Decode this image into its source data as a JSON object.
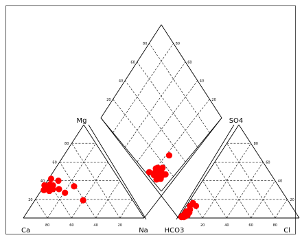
{
  "chart_data": {
    "type": "scatter",
    "subtype": "piper-diagram",
    "grid": true,
    "ticks": [
      "20",
      "40",
      "60",
      "80"
    ],
    "colors": {
      "point": "#ff0000",
      "line": "#000000",
      "frame": "#555555"
    },
    "labels": {
      "ca": "Ca",
      "mg": "Mg",
      "na": "Na",
      "hco3": "HCO3",
      "so4": "SO4",
      "cl": "Cl"
    },
    "cation_triangle": {
      "axes": [
        "Ca",
        "Mg",
        "Na"
      ],
      "points": [
        {
          "ca": 56,
          "mg": 42
        },
        {
          "ca": 66,
          "mg": 32
        },
        {
          "ca": 68,
          "mg": 30
        },
        {
          "ca": 62,
          "mg": 34
        },
        {
          "ca": 60,
          "mg": 36
        },
        {
          "ca": 63,
          "mg": 33
        },
        {
          "ca": 65,
          "mg": 31
        },
        {
          "ca": 58,
          "mg": 35
        },
        {
          "ca": 64,
          "mg": 29
        },
        {
          "ca": 60,
          "mg": 31
        },
        {
          "ca": 55,
          "mg": 31
        },
        {
          "ca": 51,
          "mg": 40
        },
        {
          "ca": 52,
          "mg": 27
        },
        {
          "ca": 41,
          "mg": 34
        },
        {
          "ca": 41,
          "mg": 19
        },
        {
          "ca": 67,
          "mg": 35
        }
      ]
    },
    "anion_triangle": {
      "axes": [
        "HCO3",
        "SO4",
        "Cl"
      ],
      "points": [
        {
          "hco3": 96,
          "cl": 2
        },
        {
          "hco3": 94,
          "cl": 3
        },
        {
          "hco3": 92,
          "cl": 4
        },
        {
          "hco3": 90,
          "cl": 5
        },
        {
          "hco3": 88,
          "cl": 6
        },
        {
          "hco3": 86,
          "cl": 5
        },
        {
          "hco3": 95,
          "cl": 4
        },
        {
          "hco3": 84,
          "cl": 3
        },
        {
          "hco3": 90,
          "cl": 3
        },
        {
          "hco3": 80,
          "cl": 4
        },
        {
          "hco3": 91,
          "cl": 6
        },
        {
          "hco3": 93,
          "cl": 5
        },
        {
          "hco3": 97,
          "cl": 2
        },
        {
          "hco3": 79,
          "cl": 8
        },
        {
          "hco3": 92,
          "cl": 3
        },
        {
          "hco3": 89,
          "cl": 4
        }
      ]
    },
    "diamond": {
      "axes": [
        "Na",
        "SO4"
      ],
      "points": [
        {
          "na": 3,
          "so4": 23
        },
        {
          "na": 5,
          "so4": 17
        },
        {
          "na": 8,
          "so4": 18
        },
        {
          "na": 4,
          "so4": 12
        },
        {
          "na": 7,
          "so4": 13
        },
        {
          "na": 9,
          "so4": 16
        },
        {
          "na": 11,
          "so4": 20
        },
        {
          "na": 10,
          "so4": 13
        },
        {
          "na": 13,
          "so4": 19
        },
        {
          "na": 8,
          "so4": 9
        },
        {
          "na": 14,
          "so4": 14
        },
        {
          "na": 12,
          "so4": 10
        },
        {
          "na": 17,
          "so4": 15
        },
        {
          "na": 15,
          "so4": 8
        },
        {
          "na": 31,
          "so4": 18
        },
        {
          "na": 6,
          "so4": 11
        }
      ]
    }
  }
}
